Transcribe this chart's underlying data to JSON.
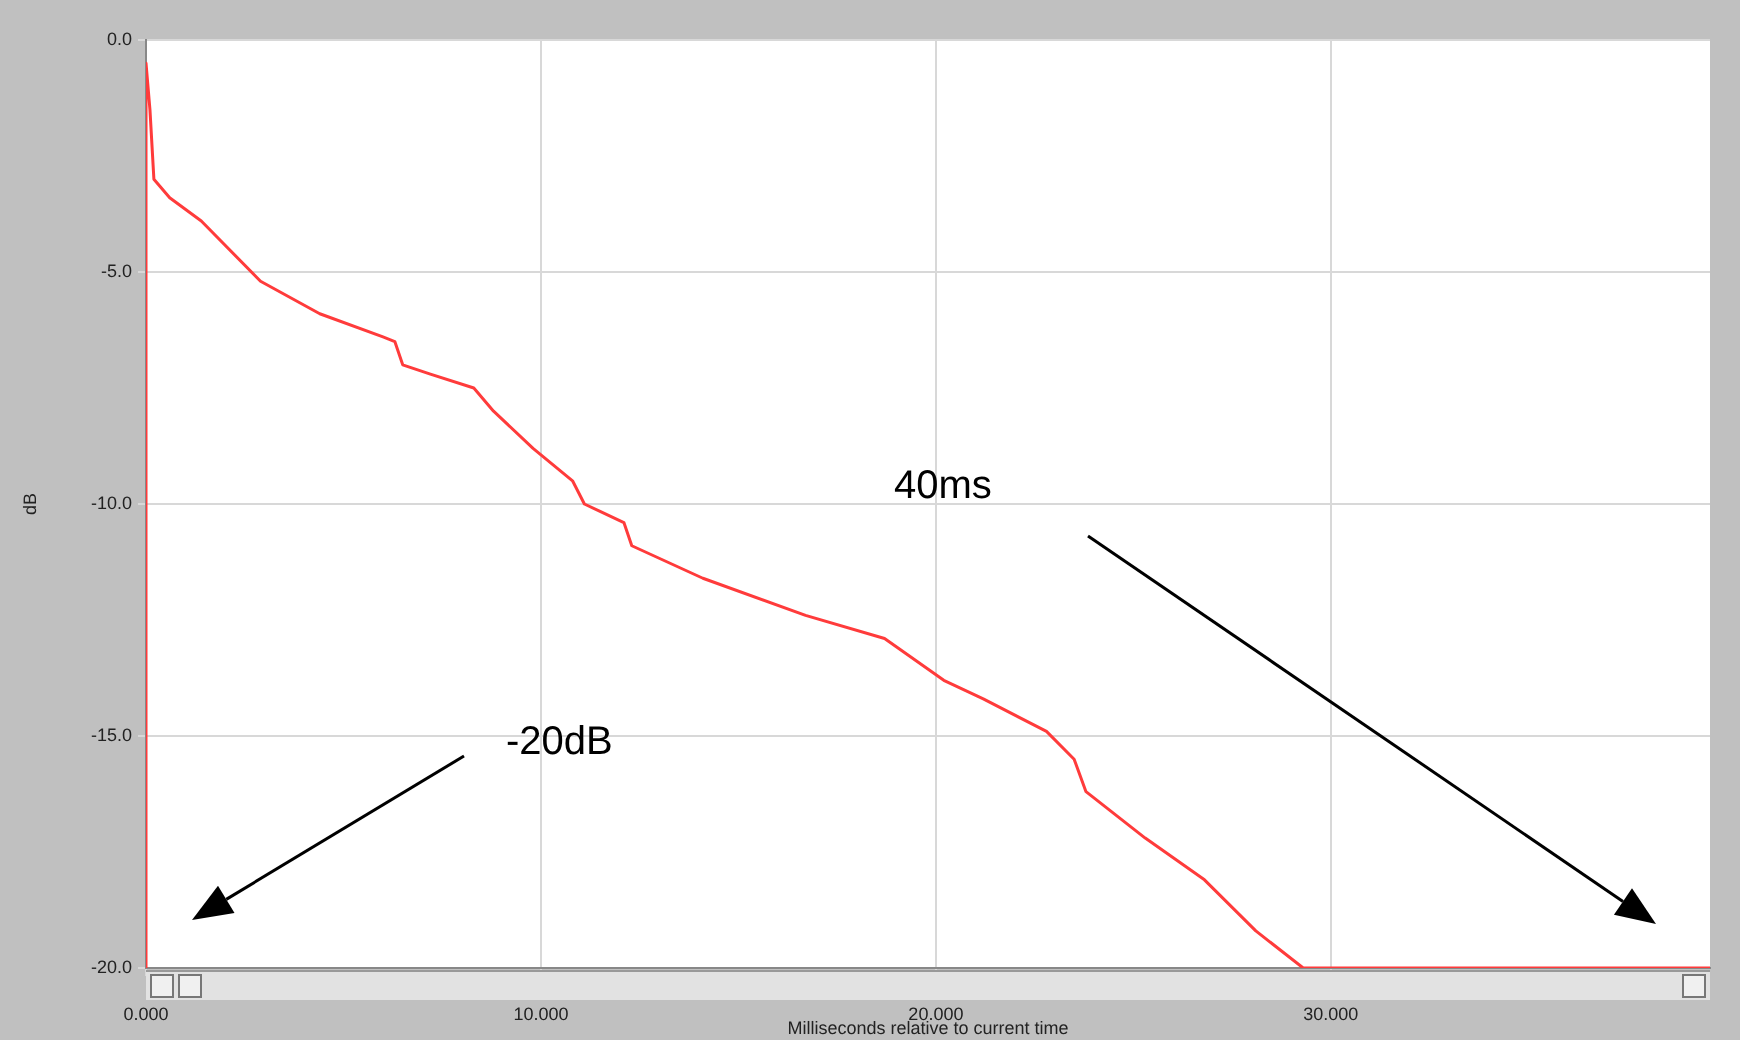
{
  "chart_data": {
    "type": "line",
    "xlabel": "Milliseconds relative to current time",
    "ylabel": "dB",
    "xlim": [
      0,
      39.6
    ],
    "ylim": [
      -20,
      0
    ],
    "xticks": [
      {
        "value": 0,
        "label": "0.000"
      },
      {
        "value": 10,
        "label": "10.000"
      },
      {
        "value": 20,
        "label": "20.000"
      },
      {
        "value": 30,
        "label": "30.000"
      }
    ],
    "yticks": [
      {
        "value": 0,
        "label": "0.0"
      },
      {
        "value": -5,
        "label": "-5.0"
      },
      {
        "value": -10,
        "label": "-10.0"
      },
      {
        "value": -15,
        "label": "-15.0"
      },
      {
        "value": -20,
        "label": "-20.0"
      }
    ],
    "grid": true,
    "legend": false,
    "marker": "none",
    "line_style": "solid",
    "annotations": [
      "40ms",
      "-20dB"
    ],
    "series": [
      {
        "color": "#ff3b3b",
        "x": [
          0,
          0,
          0.1,
          0.2,
          0.6,
          1.4,
          2.9,
          4.4,
          6.0,
          6.3,
          6.5,
          7.2,
          8.3,
          8.8,
          9.8,
          10.8,
          11.1,
          12.1,
          12.3,
          14.1,
          16.7,
          18.7,
          20.2,
          21.2,
          22.8,
          23.5,
          23.8,
          25.3,
          26.8,
          28.1,
          29.3,
          39.6
        ],
        "values": [
          -20,
          -0.5,
          -1.5,
          -3.0,
          -3.4,
          -3.9,
          -5.2,
          -5.9,
          -6.4,
          -6.5,
          -7.0,
          -7.2,
          -7.5,
          -8.0,
          -8.8,
          -9.5,
          -10.0,
          -10.4,
          -10.9,
          -11.6,
          -12.4,
          -12.9,
          -13.8,
          -14.2,
          -14.9,
          -15.5,
          -16.2,
          -17.2,
          -18.1,
          -19.2,
          -20,
          -20
        ]
      }
    ]
  }
}
